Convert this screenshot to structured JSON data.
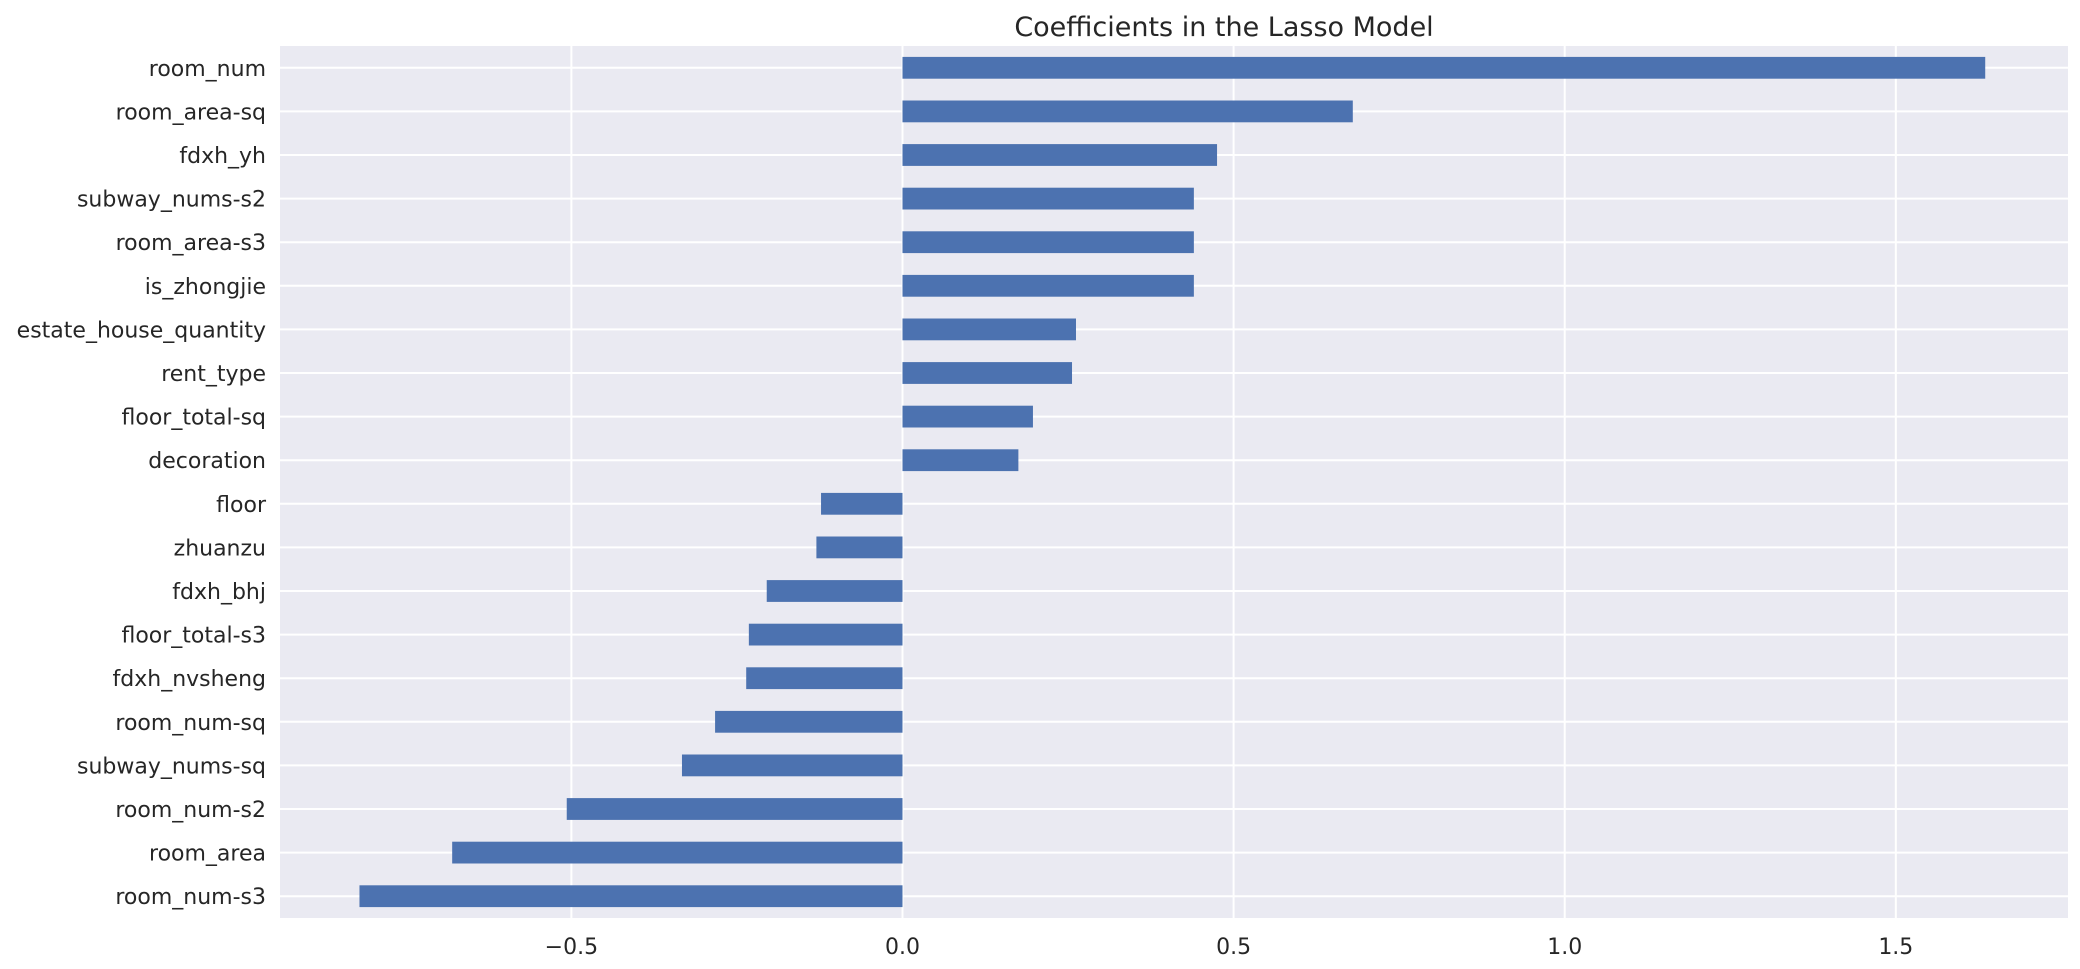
{
  "chart_data": {
    "type": "bar",
    "orientation": "horizontal",
    "title": "Coefficients in the Lasso Model",
    "xlabel": "",
    "ylabel": "",
    "xlim": [
      -0.94,
      1.76
    ],
    "xticks": [
      -0.5,
      0.0,
      0.5,
      1.0,
      1.5
    ],
    "xtick_labels": [
      "−0.5",
      "0.0",
      "0.5",
      "1.0",
      "1.5"
    ],
    "grid": true,
    "legend": "none",
    "categories": [
      "room_num",
      "room_area-sq",
      "fdxh_yh",
      "subway_nums-s2",
      "room_area-s3",
      "is_zhongjie",
      "estate_house_quantity",
      "rent_type",
      "floor_total-sq",
      "decoration",
      "floor",
      "zhuanzu",
      "fdxh_bhj",
      "floor_total-s3",
      "fdxh_nvsheng",
      "room_num-sq",
      "subway_nums-sq",
      "room_num-s2",
      "room_area",
      "room_num-s3"
    ],
    "values": [
      1.635,
      0.68,
      0.475,
      0.44,
      0.44,
      0.44,
      0.262,
      0.256,
      0.197,
      0.175,
      -0.123,
      -0.13,
      -0.205,
      -0.232,
      -0.236,
      -0.283,
      -0.333,
      -0.507,
      -0.68,
      -0.82
    ],
    "colors": {
      "bar": "#4c72b0",
      "plot_background": "#eaeaf2",
      "grid": "#ffffff",
      "text": "#262626"
    }
  }
}
